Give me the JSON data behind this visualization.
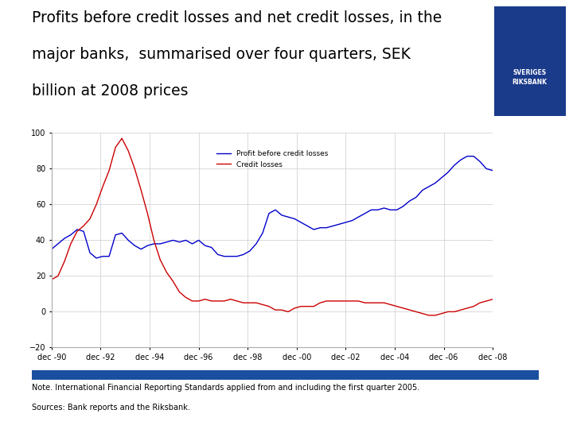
{
  "title_line1": "Profits before credit losses and net credit losses, in the",
  "title_line2": "major banks,  summarised over four quarters, SEK",
  "title_line3": "billion at 2008 prices",
  "title_fontsize": 13.5,
  "ylim": [
    -20,
    100
  ],
  "yticks": [
    -20,
    0,
    20,
    40,
    60,
    80,
    100
  ],
  "note_text": "Note. International Financial Reporting Standards applied from and including the first quarter 2005.\nSources: Bank reports and the Riksbank.",
  "legend_labels": [
    "Profit before credit losses",
    "Credit losses"
  ],
  "legend_colors": [
    "#0000cc",
    "#cc0000"
  ],
  "bg_color": "#ffffff",
  "plot_bg": "#ffffff",
  "grid_color": "#cccccc",
  "footer_bar_color": "#1a4fa0",
  "x_tick_labels": [
    "dec -90",
    "dec -92",
    "dec -94",
    "dec -96",
    "dec -98",
    "dec -00",
    "dec -02",
    "dec -04",
    "dec -06",
    "dec -08"
  ],
  "profit_data": [
    35,
    38,
    41,
    43,
    46,
    45,
    33,
    30,
    31,
    31,
    43,
    44,
    40,
    37,
    35,
    37,
    38,
    38,
    39,
    40,
    39,
    40,
    38,
    40,
    37,
    36,
    32,
    31,
    31,
    31,
    32,
    34,
    38,
    44,
    55,
    57,
    54,
    53,
    52,
    50,
    48,
    46,
    47,
    47,
    48,
    49,
    50,
    51,
    53,
    55,
    57,
    57,
    58,
    57,
    57,
    59,
    62,
    64,
    68,
    70,
    72,
    75,
    78,
    82,
    85,
    87,
    87,
    84,
    80,
    79
  ],
  "credit_loss_data": [
    18,
    20,
    28,
    38,
    45,
    48,
    52,
    60,
    70,
    79,
    92,
    97,
    90,
    80,
    68,
    55,
    40,
    29,
    22,
    17,
    11,
    8,
    6,
    6,
    7,
    6,
    6,
    6,
    7,
    6,
    5,
    5,
    5,
    4,
    3,
    1,
    1,
    0,
    2,
    3,
    3,
    3,
    5,
    6,
    6,
    6,
    6,
    6,
    6,
    5,
    5,
    5,
    5,
    4,
    3,
    2,
    1,
    0,
    -1,
    -2,
    -2,
    -1,
    0,
    0,
    1,
    2,
    3,
    5,
    6,
    7
  ]
}
